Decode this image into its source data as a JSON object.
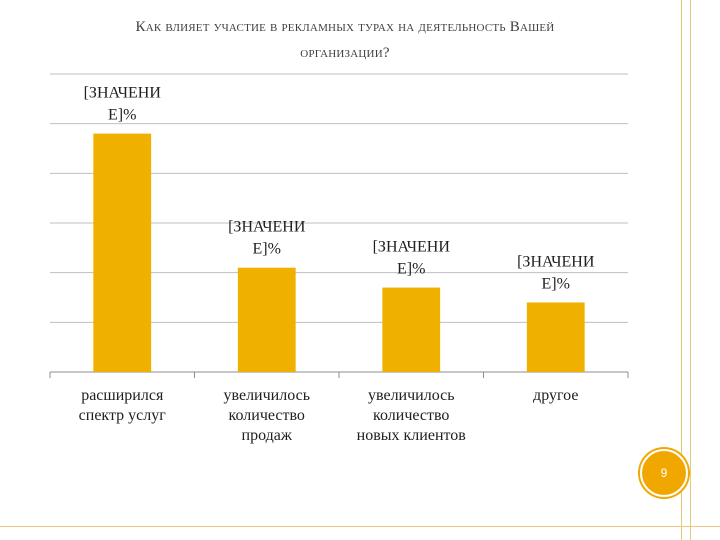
{
  "slide": {
    "title_line1": "Как влияет участие в рекламных турах на деятельность Вашей",
    "title_line2": "организации?",
    "page_number": "9"
  },
  "chart_data": {
    "type": "bar",
    "title": "Как влияет участие в рекламных турах на деятельность Вашей организации?",
    "categories": [
      [
        "расширился",
        "спектр услуг"
      ],
      [
        "увеличилось",
        "количество",
        "продаж"
      ],
      [
        "увеличилось",
        "количество",
        "новых клиентов"
      ],
      [
        "другое"
      ]
    ],
    "values": [
      48,
      21,
      17,
      14
    ],
    "data_labels": [
      [
        "[ЗНАЧЕНИ",
        "Е]%"
      ],
      [
        "[ЗНАЧЕНИ",
        "Е]%"
      ],
      [
        "[ЗНАЧЕНИ",
        "Е]%"
      ],
      [
        "[ЗНАЧЕНИ",
        "Е]%"
      ]
    ],
    "ylim": [
      0,
      60
    ],
    "grid": true,
    "bar_color": "#f0b000",
    "gridline_color": "#bfbfbf"
  }
}
